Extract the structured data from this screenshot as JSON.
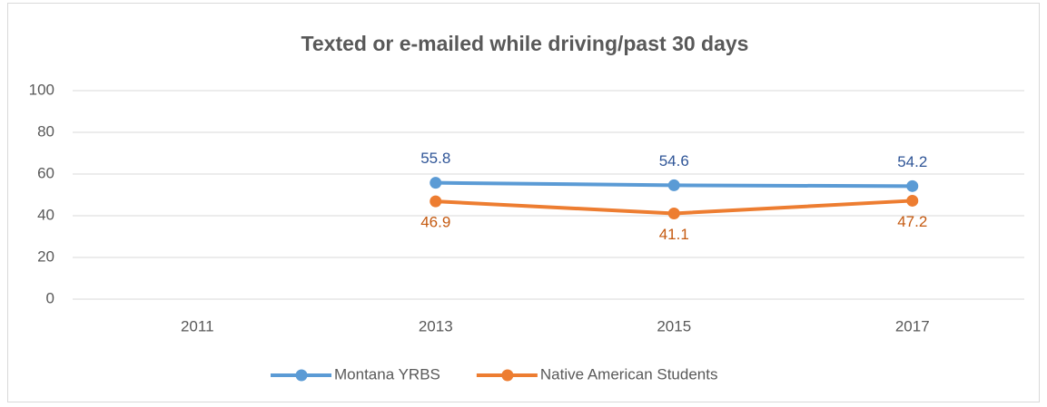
{
  "chart_data": {
    "type": "line",
    "title": "Texted or e-mailed while driving/past 30 days",
    "categories": [
      "2011",
      "2013",
      "2015",
      "2017"
    ],
    "series": [
      {
        "name": "Montana YRBS",
        "color": "#5b9bd5",
        "values": [
          null,
          55.8,
          54.6,
          54.2
        ]
      },
      {
        "name": "Native American Students",
        "color": "#ed7d31",
        "values": [
          null,
          46.9,
          41.1,
          47.2
        ]
      }
    ],
    "ylim": [
      0,
      100
    ],
    "yticks": [
      0,
      20,
      40,
      60,
      80,
      100
    ],
    "grid": true,
    "legend": "bottom"
  }
}
